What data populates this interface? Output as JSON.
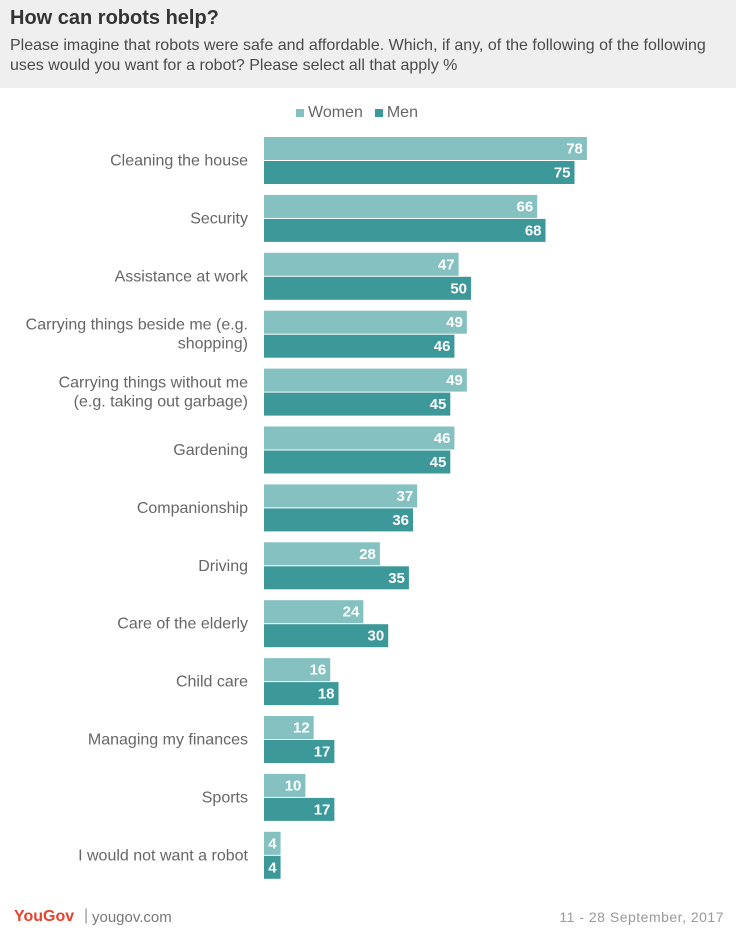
{
  "header": {
    "title": "How can robots help?",
    "subtitle": "Please imagine that robots were safe and affordable. Which, if any, of the following of the following uses would you want for a robot? Please select all that apply %"
  },
  "colors": {
    "women": "#86c1c2",
    "men": "#3d9899"
  },
  "chart_data": {
    "type": "bar",
    "orientation": "horizontal",
    "title": "How can robots help?",
    "categories": [
      "Cleaning the house",
      "Security",
      "Assistance at work",
      "Carrying things beside me (e.g. shopping)",
      "Carrying things without me (e.g. taking out garbage)",
      "Gardening",
      "Companionship",
      "Driving",
      "Care of the elderly",
      "Child care",
      "Managing my finances",
      "Sports",
      "I would not want a robot"
    ],
    "category_lines": [
      [
        "Cleaning the house"
      ],
      [
        "Security"
      ],
      [
        "Assistance at work"
      ],
      [
        "Carrying things beside me (e.g.",
        "shopping)"
      ],
      [
        "Carrying things without me",
        "(e.g. taking out garbage)"
      ],
      [
        "Gardening"
      ],
      [
        "Companionship"
      ],
      [
        "Driving"
      ],
      [
        "Care of the elderly"
      ],
      [
        "Child care"
      ],
      [
        "Managing my finances"
      ],
      [
        "Sports"
      ],
      [
        "I would not want a robot"
      ]
    ],
    "series": [
      {
        "name": "Women",
        "values": [
          78,
          66,
          47,
          49,
          49,
          46,
          37,
          28,
          24,
          16,
          12,
          10,
          4
        ]
      },
      {
        "name": "Men",
        "values": [
          75,
          68,
          50,
          46,
          45,
          45,
          36,
          35,
          30,
          18,
          17,
          17,
          4
        ]
      }
    ],
    "xlim": [
      0,
      100
    ],
    "grid": false,
    "legend_position": "top"
  },
  "footer": {
    "logo": "YouGov",
    "separator": "|",
    "url": "yougov.com",
    "date": "11 - 28 September, 2017"
  }
}
